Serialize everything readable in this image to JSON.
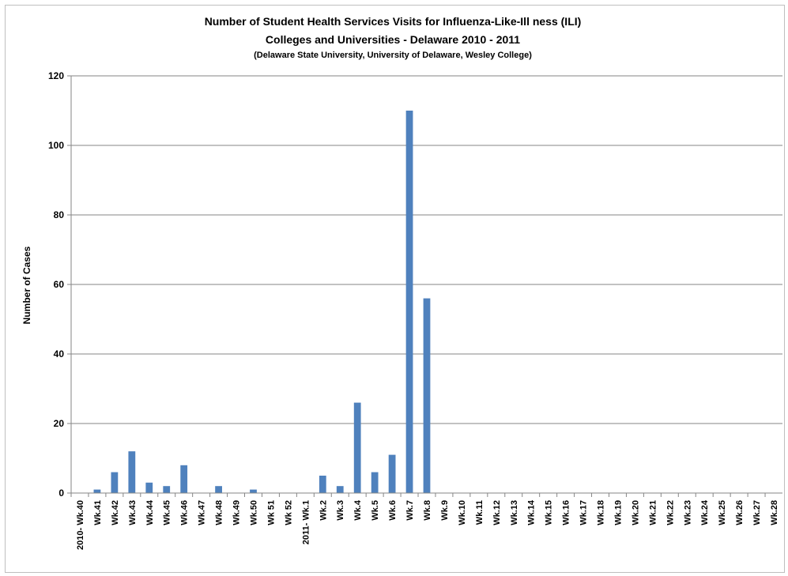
{
  "chart_data": {
    "type": "bar",
    "title": [
      "Number of Student Health Services Visits for Influenza-Like-Ill ness (ILI)",
      "Colleges and Universities  - Delaware 2010 - 2011",
      "(Delaware State University, University of Delaware, Wesley College)"
    ],
    "xlabel": "",
    "ylabel": "Number of Cases",
    "ylim": [
      0,
      120
    ],
    "yticks": [
      0,
      20,
      40,
      60,
      80,
      100,
      120
    ],
    "grid": true,
    "bar_color": "#4f81bd",
    "categories": [
      "2010- Wk.40",
      "Wk.41",
      "Wk.42",
      "Wk.43",
      "Wk.44",
      "Wk.45",
      "Wk.46",
      "Wk.47",
      "Wk.48",
      "Wk.49",
      "Wk.50",
      "Wk 51",
      "Wk 52",
      "2011- Wk.1",
      "Wk.2",
      "Wk.3",
      "Wk.4",
      "Wk.5",
      "Wk.6",
      "Wk.7",
      "Wk.8",
      "Wk.9",
      "Wk.10",
      "Wk.11",
      "Wk.12",
      "Wk.13",
      "Wk.14",
      "Wk.15",
      "Wk.16",
      "Wk.17",
      "Wk.18",
      "Wk.19",
      "Wk.20",
      "Wk.21",
      "Wk.22",
      "Wk.23",
      "Wk.24",
      "Wk.25",
      "Wk.26",
      "Wk.27",
      "Wk.28"
    ],
    "values": [
      0,
      1,
      6,
      12,
      3,
      2,
      8,
      0,
      2,
      0,
      1,
      0,
      0,
      0,
      5,
      2,
      26,
      6,
      11,
      110,
      56,
      0,
      0,
      0,
      0,
      0,
      0,
      0,
      0,
      0,
      0,
      0,
      0,
      0,
      0,
      0,
      0,
      0,
      0,
      0,
      0
    ]
  }
}
